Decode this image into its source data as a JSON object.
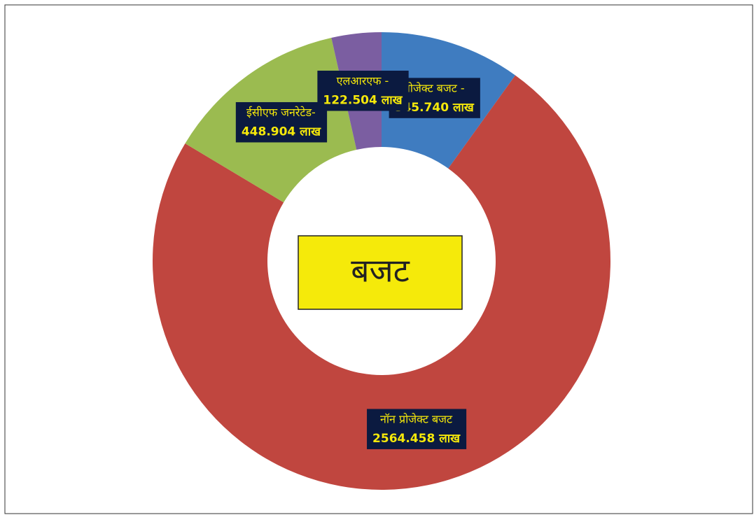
{
  "chart_data": {
    "type": "donut",
    "title": "बजट",
    "categories": [
      "प्रोजेक्ट बजट -",
      "नॉन प्रोजेक्ट बजट",
      "ईसीएफ जनरेटेड-",
      "एलआरएफ -"
    ],
    "values": [
      345.74,
      2564.458,
      448.904,
      122.504
    ],
    "value_labels": [
      "345.740 लाख",
      "2564.458 लाख",
      "448.904 लाख",
      "122.504 लाख"
    ],
    "colors": [
      "#3f7cc0",
      "#c0463f",
      "#9bbb50",
      "#7b5ea1"
    ]
  }
}
